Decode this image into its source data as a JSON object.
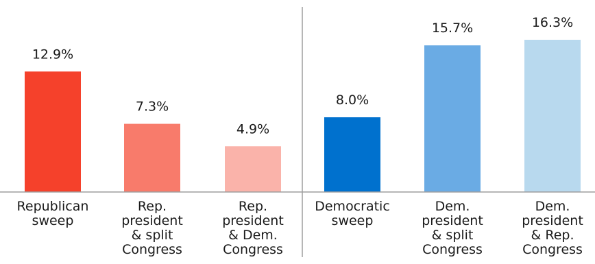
{
  "chart_data": {
    "type": "bar",
    "title": "",
    "xlabel": "",
    "ylabel": "",
    "ylim": [
      0,
      16.3
    ],
    "grid": false,
    "legend": "none",
    "value_suffix": "%",
    "categories": [
      [
        "Republican",
        "sweep"
      ],
      [
        "Rep.",
        "president",
        "& split",
        "Congress"
      ],
      [
        "Rep.",
        "president",
        "& Dem.",
        "Congress"
      ],
      [
        "Democratic",
        "sweep"
      ],
      [
        "Dem.",
        "president",
        "& split",
        "Congress"
      ],
      [
        "Dem.",
        "president",
        "& Rep.",
        "Congress"
      ]
    ],
    "values": [
      12.9,
      7.3,
      4.9,
      8.0,
      15.7,
      16.3
    ],
    "value_labels": [
      "12.9%",
      "7.3%",
      "4.9%",
      "8.0%",
      "15.7%",
      "16.3%"
    ],
    "colors": [
      "#f5412b",
      "#f87b6b",
      "#fab3aa",
      "#0071ce",
      "#6aabe4",
      "#b8d9ee"
    ]
  }
}
